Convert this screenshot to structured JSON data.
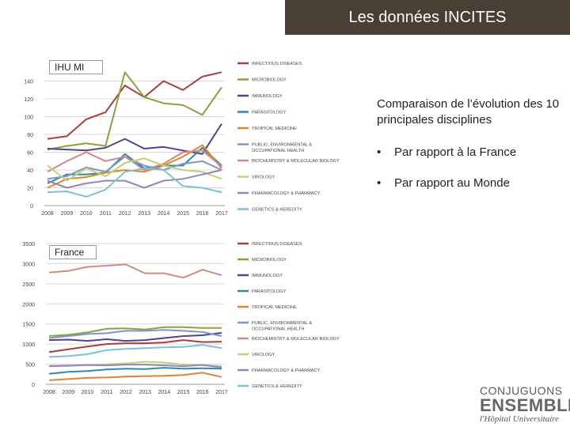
{
  "header": {
    "title": "Les données INCITES"
  },
  "side": {
    "heading": "Comparaison de l’évolution des 10 principales disciplines",
    "bullets": [
      {
        "bullet": "•",
        "text": "Par rapport à la France"
      },
      {
        "bullet": "•",
        "text": "Par rapport au Monde"
      }
    ]
  },
  "logo": {
    "line1": "CONJUGUONS",
    "line2": "ENSEMBLE",
    "line3": "l'Hôpital Universitaire"
  },
  "chart_data": [
    {
      "type": "line",
      "tag": "IHU MI",
      "x": [
        "2008",
        "2009",
        "2010",
        "2011",
        "2012",
        "2013",
        "2014",
        "2015",
        "2016",
        "2017"
      ],
      "ylim": [
        0,
        160
      ],
      "yticks": [
        "0",
        "20",
        "40",
        "60",
        "80",
        "100",
        "120",
        "140"
      ],
      "ytick_values": [
        0,
        20,
        40,
        60,
        80,
        100,
        120,
        140
      ],
      "grid": true,
      "legend": "right",
      "series": [
        {
          "name": "INFECTIOUS DISEASES",
          "color": "#a93f3a",
          "values": [
            75,
            78,
            97,
            105,
            135,
            122,
            140,
            130,
            145,
            150
          ]
        },
        {
          "name": "MICROBIOLOGY",
          "color": "#8aa23c",
          "values": [
            63,
            67,
            70,
            67,
            150,
            122,
            115,
            113,
            102,
            133
          ]
        },
        {
          "name": "IMMUNOLOGY",
          "color": "#5a3f8a",
          "values": [
            64,
            63,
            62,
            65,
            75,
            64,
            66,
            62,
            58,
            92
          ]
        },
        {
          "name": "PARASITOLOGY",
          "color": "#2e8ba8",
          "values": [
            25,
            35,
            35,
            37,
            58,
            42,
            45,
            45,
            65,
            45
          ]
        },
        {
          "name": "TROPICAL MEDICINE",
          "color": "#e0852a",
          "values": [
            20,
            30,
            32,
            37,
            40,
            38,
            45,
            55,
            68,
            42
          ]
        },
        {
          "name": "PUBLIC, ENVIRONMENTAL & OCCUPATIONAL HEALTH",
          "color": "#7d97c9",
          "values": [
            30,
            33,
            43,
            38,
            55,
            45,
            40,
            47,
            50,
            40
          ]
        },
        {
          "name": "BIOCHEMISTRY & MOLECULAR BIOLOGY",
          "color": "#d08a86",
          "values": [
            38,
            50,
            60,
            50,
            55,
            40,
            47,
            60,
            62,
            44
          ]
        },
        {
          "name": "VIROLOGY",
          "color": "#c3d07b",
          "values": [
            45,
            28,
            42,
            33,
            48,
            53,
            45,
            40,
            38,
            30
          ]
        },
        {
          "name": "PHARMACOLOGY & PHARMACY",
          "color": "#9b82ba",
          "values": [
            28,
            20,
            25,
            28,
            28,
            20,
            28,
            30,
            35,
            40
          ]
        },
        {
          "name": "GENETICS & HEREDITY",
          "color": "#7fc0d7",
          "values": [
            15,
            16,
            10,
            18,
            38,
            42,
            40,
            22,
            20,
            15
          ]
        }
      ]
    },
    {
      "type": "line",
      "tag": "France",
      "x": [
        "2008",
        "2009",
        "2010",
        "2011",
        "2012",
        "2013",
        "2014",
        "2015",
        "2016",
        "2017"
      ],
      "ylim": [
        0,
        3500
      ],
      "yticks": [
        "0",
        "500",
        "1000",
        "1500",
        "2000",
        "2500",
        "3000",
        "3500"
      ],
      "ytick_values": [
        0,
        500,
        1000,
        1500,
        2000,
        2500,
        3000,
        3500
      ],
      "grid": true,
      "legend": "right",
      "series": [
        {
          "name": "INFECTIOUS DISEASES",
          "color": "#a93f3a",
          "values": [
            800,
            870,
            940,
            1000,
            1020,
            1020,
            1040,
            1100,
            1050,
            1060
          ]
        },
        {
          "name": "MICROBIOLOGY",
          "color": "#8aa23c",
          "values": [
            1200,
            1230,
            1290,
            1380,
            1390,
            1360,
            1420,
            1420,
            1400,
            1400
          ]
        },
        {
          "name": "IMMUNOLOGY",
          "color": "#5a3f8a",
          "values": [
            1100,
            1110,
            1080,
            1120,
            1080,
            1100,
            1150,
            1200,
            1220,
            1280
          ]
        },
        {
          "name": "PARASITOLOGY",
          "color": "#2e8ba8",
          "values": [
            260,
            310,
            330,
            370,
            390,
            380,
            410,
            390,
            400,
            390
          ]
        },
        {
          "name": "TROPICAL MEDICINE",
          "color": "#e0852a",
          "values": [
            100,
            130,
            160,
            170,
            190,
            200,
            210,
            230,
            290,
            180
          ]
        },
        {
          "name": "PUBLIC, ENVIRONMENTAL & OCCUPATIONAL HEALTH",
          "color": "#7d97c9",
          "values": [
            1150,
            1200,
            1250,
            1270,
            1330,
            1330,
            1350,
            1330,
            1300,
            1200
          ]
        },
        {
          "name": "BIOCHEMISTRY & MOLECULAR BIOLOGY",
          "color": "#d08a86",
          "values": [
            2780,
            2820,
            2920,
            2950,
            2980,
            2760,
            2760,
            2650,
            2850,
            2710
          ]
        },
        {
          "name": "VIROLOGY",
          "color": "#c3d07b",
          "values": [
            460,
            470,
            480,
            500,
            520,
            560,
            540,
            490,
            480,
            450
          ]
        },
        {
          "name": "PHARMACOLOGY & PHARMACY",
          "color": "#9b82ba",
          "values": [
            450,
            460,
            480,
            470,
            490,
            490,
            470,
            450,
            480,
            420
          ]
        },
        {
          "name": "GENETICS & HEREDITY",
          "color": "#7fc0d7",
          "values": [
            680,
            700,
            750,
            850,
            880,
            900,
            920,
            930,
            980,
            900
          ]
        }
      ]
    }
  ]
}
